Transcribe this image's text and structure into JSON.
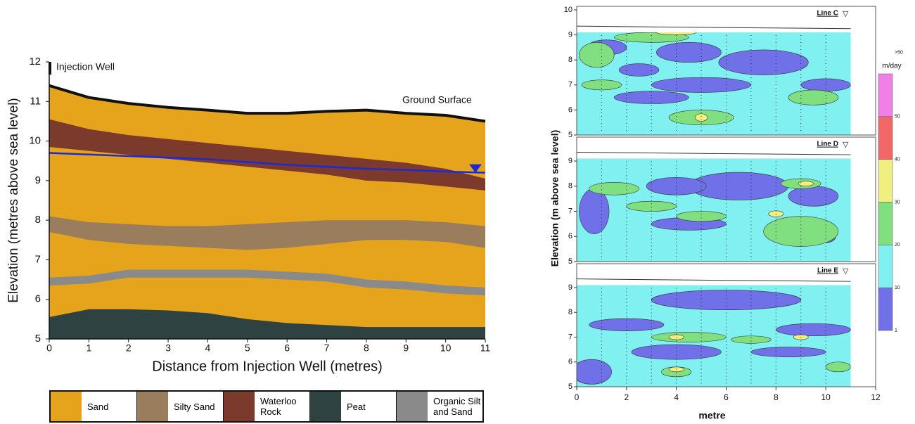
{
  "chart_data": [
    {
      "type": "cross-section",
      "annotations": [
        "Injection Well",
        "Ground Surface"
      ],
      "xlabel": "Distance from Injection Well (metres)",
      "ylabel": "Elevation (metres above sea level)",
      "x": [
        0,
        1,
        2,
        3,
        4,
        5,
        6,
        7,
        8,
        9,
        10,
        11
      ],
      "xlim": [
        0,
        11
      ],
      "ylim": [
        5,
        12
      ],
      "xticks": [
        0,
        1,
        2,
        3,
        4,
        5,
        6,
        7,
        8,
        9,
        10,
        11
      ],
      "yticks": [
        5,
        6,
        7,
        8,
        9,
        10,
        11,
        12
      ],
      "layers": [
        {
          "name": "Sand",
          "color": "#e6a41c",
          "top": [
            11.4,
            11.1,
            10.95,
            10.85,
            10.78,
            10.7,
            10.7,
            10.75,
            10.78,
            10.7,
            10.65,
            10.5
          ],
          "bottom": [
            5,
            5,
            5,
            5,
            5,
            5,
            5,
            5,
            5,
            5,
            5,
            5
          ]
        },
        {
          "name": "Silty Sand",
          "color": "#9a7d5c",
          "top": [
            8.1,
            7.95,
            7.9,
            7.85,
            7.85,
            7.9,
            7.95,
            8.0,
            8.0,
            8.0,
            7.95,
            7.85
          ],
          "bottom": [
            7.7,
            7.5,
            7.4,
            7.35,
            7.3,
            7.25,
            7.3,
            7.4,
            7.5,
            7.5,
            7.45,
            7.3
          ]
        },
        {
          "name": "Waterloo Rock",
          "color": "#7b3a2c",
          "top": [
            10.55,
            10.3,
            10.15,
            10.05,
            9.95,
            9.85,
            9.75,
            9.65,
            9.55,
            9.45,
            9.3,
            9.05
          ],
          "bottom": [
            9.85,
            9.75,
            9.65,
            9.55,
            9.45,
            9.35,
            9.25,
            9.15,
            9.0,
            8.95,
            8.85,
            8.75
          ]
        },
        {
          "name": "Peat",
          "color": "#2e4242",
          "top": [
            5.55,
            5.75,
            5.75,
            5.72,
            5.65,
            5.5,
            5.4,
            5.35,
            5.3,
            5.3,
            5.3,
            5.3
          ],
          "bottom": [
            5,
            5,
            5,
            5,
            5,
            5,
            5,
            5,
            5,
            5,
            5,
            5
          ]
        },
        {
          "name": "Organic Silt and Sand",
          "color": "#8a8a8a",
          "top": [
            6.55,
            6.6,
            6.75,
            6.75,
            6.75,
            6.75,
            6.7,
            6.65,
            6.5,
            6.45,
            6.35,
            6.3
          ],
          "bottom": [
            6.35,
            6.4,
            6.55,
            6.55,
            6.55,
            6.55,
            6.5,
            6.45,
            6.3,
            6.25,
            6.15,
            6.1
          ]
        }
      ],
      "water_table": {
        "color": "#1a2ad8",
        "values": [
          9.7,
          9.66,
          9.62,
          9.58,
          9.54,
          9.47,
          9.4,
          9.35,
          9.3,
          9.27,
          9.23,
          9.2
        ]
      }
    },
    {
      "type": "contour",
      "xlabel": "metre",
      "ylabel": "Elevation (m above sea level)",
      "xlim": [
        0,
        12
      ],
      "xticks": [
        0,
        2,
        4,
        6,
        8,
        10,
        12
      ],
      "panels": [
        {
          "title": "Line C",
          "ylim": [
            5,
            10
          ],
          "yticks": [
            5,
            6,
            7,
            8,
            9,
            10
          ]
        },
        {
          "title": "Line D",
          "ylim": [
            5,
            9
          ],
          "yticks": [
            5,
            6,
            7,
            8,
            9
          ]
        },
        {
          "title": "Line E",
          "ylim": [
            5,
            9
          ],
          "yticks": [
            5,
            6,
            7,
            8,
            9
          ]
        }
      ],
      "colorbar": {
        "title": "m/day",
        "labels": [
          "1",
          "10",
          "20",
          "30",
          "40",
          "50",
          ">50"
        ],
        "colors": [
          "#7070e8",
          "#80f0f0",
          "#80e080",
          "#f0f080",
          "#f06868",
          "#f080e8"
        ]
      }
    }
  ]
}
